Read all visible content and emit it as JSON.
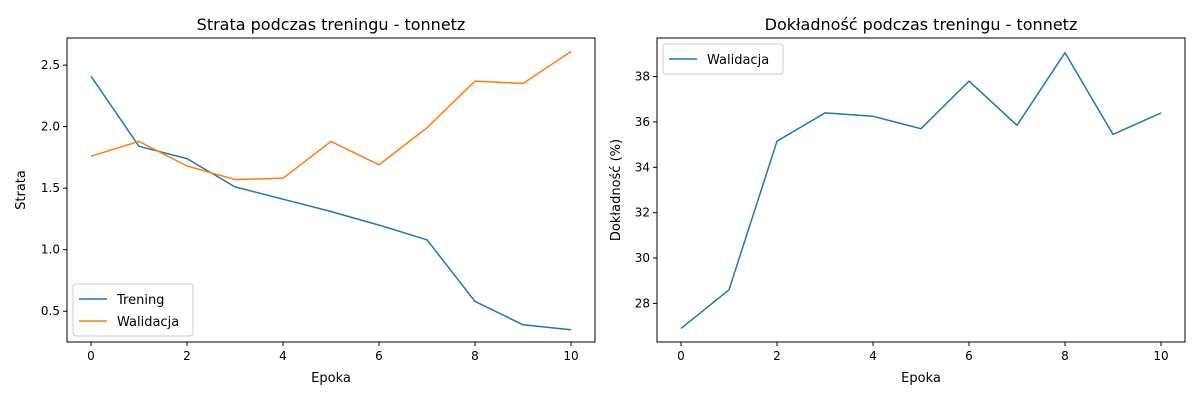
{
  "colors": {
    "series_blue": "#1f77b4",
    "series_orange": "#ff7f0e"
  },
  "chart_data": [
    {
      "type": "line",
      "title": "Strata podczas treningu - tonnetz",
      "xlabel": "Epoka",
      "ylabel": "Strata",
      "xlim": [
        -0.5,
        10.5
      ],
      "ylim": [
        0.25,
        2.72
      ],
      "xticks": [
        0,
        2,
        4,
        6,
        8,
        10
      ],
      "xtick_labels": [
        "0",
        "2",
        "4",
        "6",
        "8",
        "10"
      ],
      "yticks": [
        0.5,
        1.0,
        1.5,
        2.0,
        2.5
      ],
      "ytick_labels": [
        "0.5",
        "1.0",
        "1.5",
        "2.0",
        "2.5"
      ],
      "legend_position": "lower-left",
      "grid": false,
      "x": [
        0,
        1,
        2,
        3,
        4,
        5,
        6,
        7,
        8,
        9,
        10
      ],
      "series": [
        {
          "name": "Trening",
          "color": "#1f77b4",
          "values": [
            2.41,
            1.84,
            1.74,
            1.51,
            1.41,
            1.31,
            1.2,
            1.08,
            0.58,
            0.39,
            0.35
          ]
        },
        {
          "name": "Walidacja",
          "color": "#ff7f0e",
          "values": [
            1.76,
            1.88,
            1.68,
            1.57,
            1.58,
            1.88,
            1.69,
            1.99,
            2.37,
            2.35,
            2.61
          ]
        }
      ]
    },
    {
      "type": "line",
      "title": "Dokładność podczas treningu - tonnetz",
      "xlabel": "Epoka",
      "ylabel": "Dokładność (%)",
      "xlim": [
        -0.5,
        10.5
      ],
      "ylim": [
        26.3,
        39.7
      ],
      "xticks": [
        0,
        2,
        4,
        6,
        8,
        10
      ],
      "xtick_labels": [
        "0",
        "2",
        "4",
        "6",
        "8",
        "10"
      ],
      "yticks": [
        28,
        30,
        32,
        34,
        36,
        38
      ],
      "ytick_labels": [
        "28",
        "30",
        "32",
        "34",
        "36",
        "38"
      ],
      "legend_position": "upper-left",
      "grid": false,
      "x": [
        0,
        1,
        2,
        3,
        4,
        5,
        6,
        7,
        8,
        9,
        10
      ],
      "series": [
        {
          "name": "Walidacja",
          "color": "#1f77b4",
          "values": [
            26.9,
            28.6,
            35.15,
            36.4,
            36.25,
            35.7,
            37.8,
            35.85,
            39.05,
            35.45,
            36.4
          ]
        }
      ]
    }
  ]
}
